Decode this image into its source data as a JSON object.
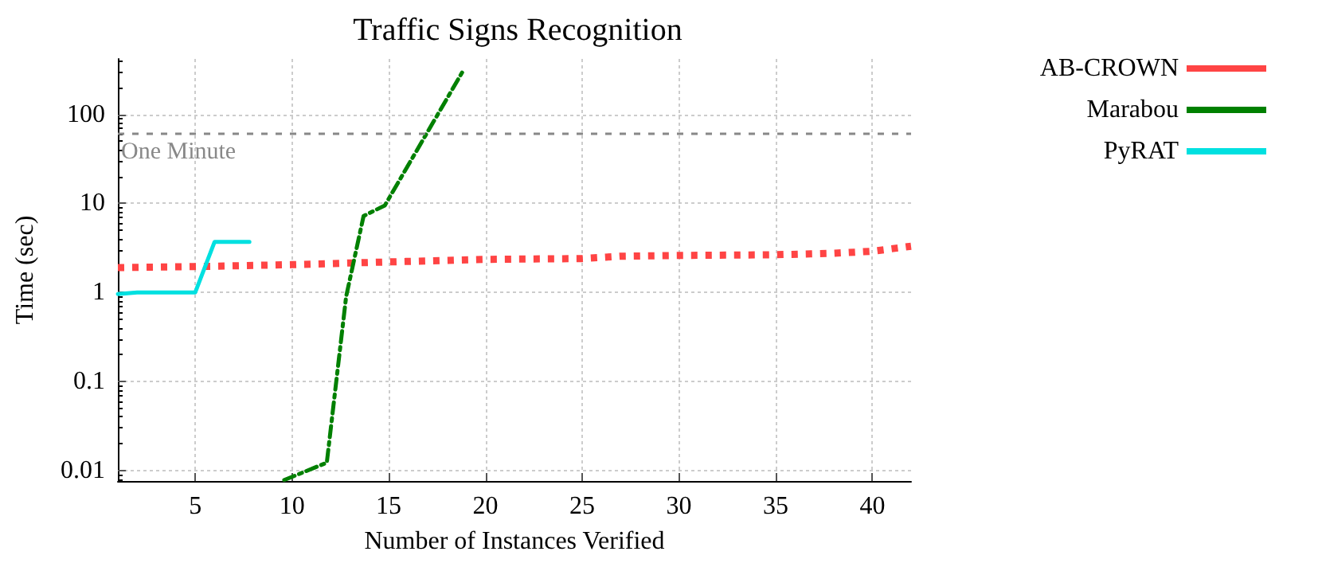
{
  "chart_data": {
    "type": "line",
    "title": "Traffic Signs Recognition",
    "xlabel": "Number of Instances Verified",
    "ylabel": "Time (sec)",
    "xlim": [
      1,
      42
    ],
    "xticks": [
      5,
      10,
      15,
      20,
      25,
      30,
      35,
      40
    ],
    "ylim": [
      0.0076,
      420
    ],
    "yticks": [
      0.01,
      0.1,
      1,
      10,
      100
    ],
    "log": "y",
    "grid": true,
    "legend": "top right",
    "marker": "none",
    "series": [
      {
        "name": "AB-CROWN",
        "color": "#ff4444",
        "line_style": "dotted",
        "x": [
          1,
          5,
          10,
          15,
          20,
          25,
          27,
          30,
          35,
          38,
          40,
          42
        ],
        "values": [
          1.9,
          1.95,
          2.05,
          2.2,
          2.35,
          2.4,
          2.55,
          2.6,
          2.65,
          2.75,
          2.9,
          3.3
        ]
      },
      {
        "name": "Marabou",
        "color": "#008000",
        "line_style": "dashed",
        "x": [
          9.6,
          11.8,
          12.8,
          13.7,
          14.8,
          18.8
        ],
        "values": [
          0.0078,
          0.0122,
          0.9,
          7.2,
          9.5,
          297
        ]
      },
      {
        "name": "PyRAT",
        "color": "#00e0e0",
        "line_style": "solid",
        "x": [
          1,
          2,
          5,
          6,
          7.8
        ],
        "values": [
          0.96,
          1.0,
          1.0,
          3.7,
          3.7
        ]
      }
    ],
    "ref_lines": [
      {
        "axis": "y",
        "value": 60,
        "label": "One Minute",
        "color": "#888888",
        "line_style": "dotted"
      }
    ]
  }
}
